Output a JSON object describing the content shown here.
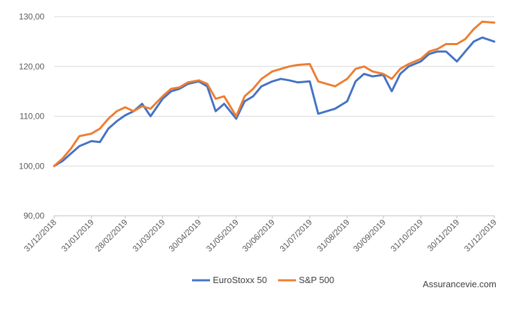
{
  "chart_data": {
    "type": "line",
    "title": "",
    "xlabel": "",
    "ylabel": "",
    "ylim": [
      90,
      130
    ],
    "y_ticks": [
      "90,00",
      "100,00",
      "110,00",
      "120,00",
      "130,00"
    ],
    "x_ticks": [
      "31/12/2018",
      "31/01/2019",
      "28/02/2019",
      "31/03/2019",
      "30/04/2019",
      "31/05/2019",
      "30/06/2019",
      "31/07/2019",
      "31/08/2019",
      "30/09/2019",
      "31/10/2019",
      "30/11/2019",
      "31/12/2019"
    ],
    "grid": "horizontal",
    "legend_position": "bottom",
    "x": [
      "2018-12-31",
      "2019-01-07",
      "2019-01-14",
      "2019-01-21",
      "2019-01-31",
      "2019-02-07",
      "2019-02-14",
      "2019-02-21",
      "2019-02-28",
      "2019-03-07",
      "2019-03-14",
      "2019-03-21",
      "2019-03-31",
      "2019-04-07",
      "2019-04-14",
      "2019-04-21",
      "2019-04-30",
      "2019-05-07",
      "2019-05-14",
      "2019-05-21",
      "2019-05-31",
      "2019-06-07",
      "2019-06-14",
      "2019-06-21",
      "2019-06-30",
      "2019-07-07",
      "2019-07-14",
      "2019-07-21",
      "2019-07-31",
      "2019-08-07",
      "2019-08-14",
      "2019-08-21",
      "2019-08-31",
      "2019-09-07",
      "2019-09-14",
      "2019-09-21",
      "2019-09-30",
      "2019-10-07",
      "2019-10-14",
      "2019-10-21",
      "2019-10-31",
      "2019-11-07",
      "2019-11-14",
      "2019-11-21",
      "2019-11-30",
      "2019-12-07",
      "2019-12-14",
      "2019-12-21",
      "2019-12-31"
    ],
    "series": [
      {
        "name": "EuroStoxx 50",
        "color": "#4472C4",
        "values": [
          100.0,
          101.0,
          102.5,
          104.0,
          105.0,
          104.8,
          107.5,
          109.0,
          110.2,
          111.0,
          112.5,
          110.0,
          113.5,
          115.0,
          115.5,
          116.5,
          117.0,
          116.0,
          111.0,
          112.5,
          109.5,
          113.0,
          114.0,
          116.0,
          117.0,
          117.5,
          117.2,
          116.8,
          117.0,
          110.5,
          111.0,
          111.5,
          113.0,
          117.0,
          118.5,
          118.0,
          118.3,
          115.0,
          118.5,
          120.0,
          121.0,
          122.5,
          123.0,
          123.0,
          121.0,
          123.0,
          125.0,
          125.8,
          125.0
        ]
      },
      {
        "name": "S&P 500",
        "color": "#ED7D31",
        "values": [
          100.0,
          101.5,
          103.5,
          106.0,
          106.5,
          107.5,
          109.5,
          111.0,
          111.8,
          111.0,
          112.0,
          111.5,
          114.0,
          115.5,
          115.8,
          116.8,
          117.2,
          116.5,
          113.5,
          114.0,
          110.0,
          114.0,
          115.5,
          117.5,
          119.0,
          119.5,
          120.0,
          120.3,
          120.5,
          117.0,
          116.5,
          116.0,
          117.5,
          119.5,
          120.0,
          119.0,
          118.5,
          117.5,
          119.5,
          120.5,
          121.5,
          123.0,
          123.5,
          124.5,
          124.5,
          125.5,
          127.5,
          129.0,
          128.8
        ]
      }
    ]
  },
  "credit": "Assurancevie.com"
}
